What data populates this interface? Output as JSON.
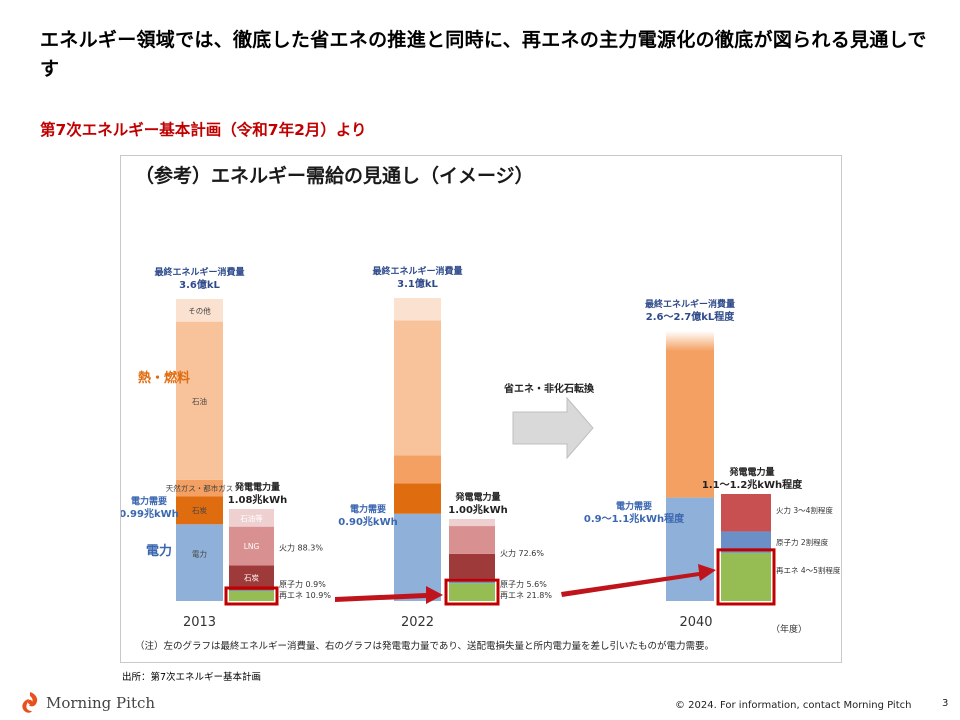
{
  "slide": {
    "title": "エネルギー領域では、徹底した省エネの推進と同時に、再エネの主力電源化の徹底が図られる見通しです",
    "subtitle": "第7次エネルギー基本計画（令和7年2月）より",
    "source": "出所：第7次エネルギー基本計画",
    "copyright": "© 2024. For information, contact Morning Pitch",
    "page_number": "3",
    "logo_text": "Morning Pitch"
  },
  "colors": {
    "accent_red": "#c00000",
    "oil": "#f8c39b",
    "other": "#fbe1d0",
    "gas": "#f4a062",
    "coal": "#e06c10",
    "electricity": "#8fb0d8",
    "thermal": "#e0a0a0",
    "nuclear": "#6b8fc7",
    "renewable": "#96bd53",
    "arrow_red": "#c0141c",
    "gray_arrow": "#d9d9d9"
  },
  "chart_data": {
    "type": "bar",
    "title": "（参考）エネルギー需給の見通し（イメージ）",
    "note": "（注）左のグラフは最終エネルギー消費量、右のグラフは発電電力量であり、送配電損失量と所内電力量を差し引いたものが電力需要。",
    "unit_label": "（年度）",
    "categories": [
      "2013",
      "2022",
      "2040"
    ],
    "group_labels": {
      "heat": "熱・燃料",
      "power": "電力"
    },
    "transition_label": "省エネ・非化石転換",
    "final_energy": [
      {
        "year": "2013",
        "label": "最終エネルギー消費量",
        "value": "3.6億kL",
        "segments": [
          {
            "name": "電力",
            "share": 0.254
          },
          {
            "name": "石炭",
            "share": 0.093
          },
          {
            "name": "天然ガス・都市ガス",
            "share": 0.054
          },
          {
            "name": "石油",
            "share": 0.524
          },
          {
            "name": "その他",
            "share": 0.075
          }
        ]
      },
      {
        "year": "2022",
        "label": "最終エネルギー消費量",
        "value": "3.1億kL",
        "segments": [
          {
            "name": "電力",
            "share": 0.288
          },
          {
            "name": "石炭",
            "share": 0.1
          },
          {
            "name": "天然ガス・都市ガス",
            "share": 0.093
          },
          {
            "name": "石油",
            "share": 0.445
          },
          {
            "name": "その他",
            "share": 0.074
          }
        ]
      },
      {
        "year": "2040",
        "label": "最終エネルギー消費量",
        "value": "2.6～2.7億kL程度",
        "segments": [
          {
            "name": "電力",
            "share": 0.383
          },
          {
            "name": "熱・燃料",
            "share": 0.617
          }
        ]
      }
    ],
    "power_demand": [
      {
        "year": "2013",
        "label": "電力需要",
        "value": "0.99兆kWh"
      },
      {
        "year": "2022",
        "label": "電力需要",
        "value": "0.90兆kWh"
      },
      {
        "year": "2040",
        "label": "電力需要",
        "value": "0.9～1.1兆kWh程度"
      }
    ],
    "generation": [
      {
        "year": "2013",
        "label": "発電電力量",
        "value": "1.08兆kWh",
        "segments": [
          {
            "name": "再エネ",
            "label": "再エネ 10.9%",
            "share": 0.109
          },
          {
            "name": "原子力",
            "label": "原子力 0.9%",
            "share": 0.009
          },
          {
            "name": "石炭",
            "share": 0.27
          },
          {
            "name": "LNG",
            "share": 0.42
          },
          {
            "name": "石油等",
            "share": 0.192
          }
        ],
        "thermal_label": "火力 88.3%"
      },
      {
        "year": "2022",
        "label": "発電電力量",
        "value": "1.00兆kWh",
        "segments": [
          {
            "name": "再エネ",
            "label": "再エネ 21.8%",
            "share": 0.218
          },
          {
            "name": "原子力",
            "label": "原子力 5.6%",
            "share": 0.056
          },
          {
            "name": "石炭",
            "share": 0.3
          },
          {
            "name": "LNG",
            "share": 0.34
          },
          {
            "name": "石油等",
            "share": 0.086
          }
        ],
        "thermal_label": "火力 72.6%"
      },
      {
        "year": "2040",
        "label": "発電電力量",
        "value": "1.1～1.2兆kWh程度",
        "segments": [
          {
            "name": "再エネ",
            "label": "再エネ 4～5割程度",
            "share": 0.45
          },
          {
            "name": "原子力",
            "label": "原子力 2割程度",
            "share": 0.2
          },
          {
            "name": "火力",
            "label": "火力 3～4割程度",
            "share": 0.35
          }
        ]
      }
    ]
  }
}
